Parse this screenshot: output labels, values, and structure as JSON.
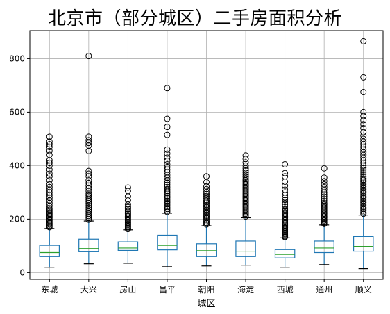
{
  "title": "北京市（部分城区）二手房面积分析",
  "chart_data": {
    "type": "boxplot",
    "title": "北京市（部分城区）二手房面积分析",
    "xlabel": "城区",
    "ylabel": "",
    "ylim": [
      -25,
      905
    ],
    "yticks": [
      0,
      200,
      400,
      600,
      800
    ],
    "grid": true,
    "colors": {
      "box": "#1f77b4",
      "median": "#2ca02c",
      "whisker": "#000000",
      "flier": "#000000",
      "grid": "#b0b0b0"
    },
    "categories": [
      "东城",
      "大兴",
      "房山",
      "昌平",
      "朝阳",
      "海淀",
      "西城",
      "通州",
      "顺义"
    ],
    "boxes": [
      {
        "name": "东城",
        "whislo": 20,
        "q1": 60,
        "med": 75,
        "q3": 102,
        "whishi": 165,
        "fliers": [
          170,
          175,
          180,
          185,
          190,
          195,
          200,
          205,
          210,
          215,
          220,
          225,
          230,
          235,
          240,
          250,
          260,
          270,
          280,
          290,
          300,
          310,
          320,
          330,
          345,
          360,
          370,
          385,
          400,
          410,
          420,
          440,
          455,
          470,
          480,
          490,
          508
        ]
      },
      {
        "name": "大兴",
        "whislo": 33,
        "q1": 78,
        "med": 90,
        "q3": 125,
        "whishi": 193,
        "fliers": [
          198,
          205,
          212,
          220,
          228,
          235,
          242,
          250,
          258,
          265,
          272,
          280,
          288,
          295,
          305,
          315,
          325,
          335,
          345,
          360,
          370,
          380,
          455,
          475,
          485,
          495,
          508,
          810
        ]
      },
      {
        "name": "房山",
        "whislo": 35,
        "q1": 83,
        "med": 92,
        "q3": 115,
        "whishi": 160,
        "fliers": [
          163,
          166,
          170,
          174,
          178,
          182,
          186,
          190,
          195,
          200,
          205,
          210,
          215,
          220,
          225,
          230,
          238,
          245,
          255,
          270,
          285,
          305,
          318
        ]
      },
      {
        "name": "昌平",
        "whislo": 22,
        "q1": 85,
        "med": 102,
        "q3": 140,
        "whishi": 222,
        "fliers": [
          227,
          232,
          238,
          244,
          250,
          256,
          262,
          268,
          274,
          280,
          286,
          292,
          298,
          305,
          312,
          320,
          328,
          336,
          345,
          355,
          365,
          375,
          385,
          395,
          405,
          418,
          430,
          445,
          460,
          515,
          545,
          575,
          690
        ]
      },
      {
        "name": "朝阳",
        "whislo": 25,
        "q1": 60,
        "med": 82,
        "q3": 108,
        "whishi": 175,
        "fliers": [
          180,
          186,
          192,
          198,
          204,
          210,
          216,
          222,
          228,
          234,
          240,
          246,
          252,
          258,
          264,
          270,
          278,
          286,
          294,
          302,
          312,
          322,
          338,
          360
        ]
      },
      {
        "name": "海淀",
        "whislo": 28,
        "q1": 60,
        "med": 80,
        "q3": 118,
        "whishi": 205,
        "fliers": [
          210,
          215,
          220,
          225,
          230,
          235,
          240,
          245,
          250,
          255,
          260,
          265,
          270,
          275,
          280,
          285,
          290,
          295,
          300,
          305,
          310,
          315,
          320,
          325,
          330,
          335,
          340,
          345,
          350,
          358,
          366,
          374,
          382,
          390,
          400,
          412,
          425,
          438
        ]
      },
      {
        "name": "西城",
        "whislo": 20,
        "q1": 55,
        "med": 68,
        "q3": 86,
        "whishi": 130,
        "fliers": [
          133,
          136,
          140,
          144,
          148,
          152,
          156,
          160,
          164,
          168,
          172,
          176,
          180,
          185,
          190,
          195,
          200,
          205,
          210,
          215,
          220,
          225,
          230,
          235,
          240,
          248,
          256,
          264,
          272,
          280,
          290,
          300,
          310,
          325,
          340,
          360,
          372,
          405
        ]
      },
      {
        "name": "通州",
        "whislo": 30,
        "q1": 75,
        "med": 92,
        "q3": 118,
        "whishi": 178,
        "fliers": [
          182,
          186,
          190,
          195,
          200,
          205,
          210,
          215,
          220,
          225,
          230,
          235,
          240,
          245,
          250,
          255,
          260,
          268,
          276,
          284,
          292,
          300,
          310,
          320,
          330,
          342,
          355,
          390
        ]
      },
      {
        "name": "顺义",
        "whislo": 15,
        "q1": 80,
        "med": 98,
        "q3": 135,
        "whishi": 215,
        "fliers": [
          220,
          226,
          232,
          238,
          244,
          250,
          256,
          262,
          268,
          274,
          280,
          286,
          292,
          298,
          304,
          310,
          316,
          322,
          328,
          334,
          340,
          346,
          352,
          360,
          368,
          376,
          384,
          392,
          400,
          410,
          420,
          430,
          440,
          450,
          460,
          470,
          480,
          490,
          500,
          512,
          525,
          540,
          555,
          570,
          585,
          600,
          675,
          730,
          865
        ]
      }
    ]
  }
}
